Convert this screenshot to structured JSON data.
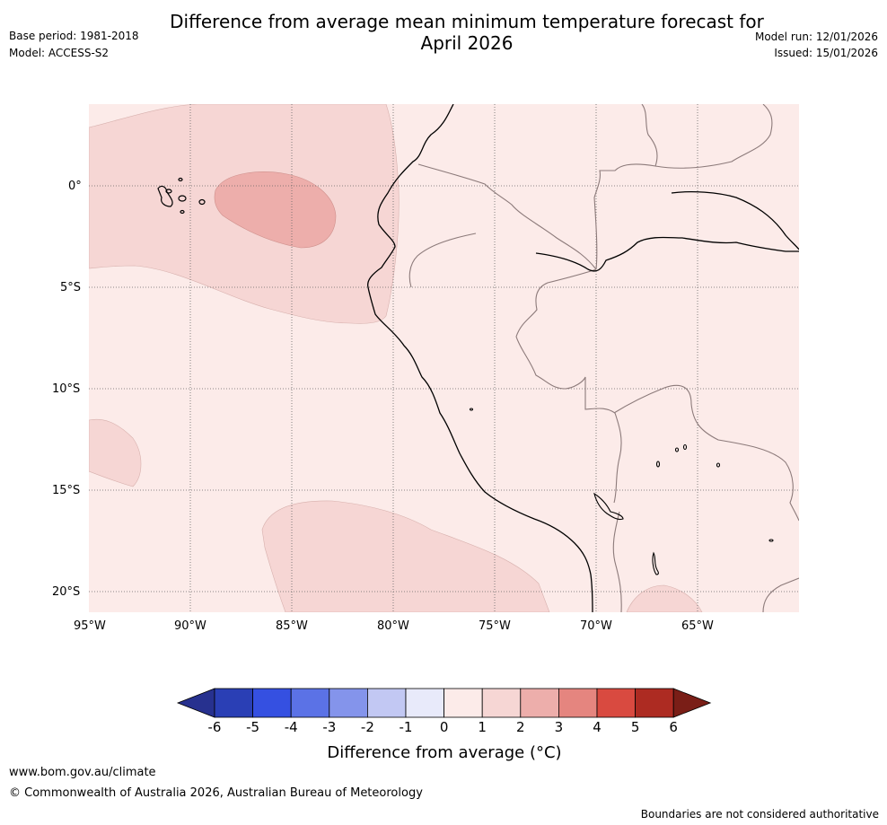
{
  "header": {
    "title_line1": "Difference from average mean minimum temperature forecast for",
    "title_line2": "April 2026",
    "base_period": "Base period: 1981-2018",
    "model": "Model: ACCESS-S2",
    "model_run": "Model run: 12/01/2026",
    "issued": "Issued: 15/01/2026"
  },
  "map": {
    "lat_labels": [
      "0°",
      "5°S",
      "10°S",
      "15°S",
      "20°S"
    ],
    "lon_labels": [
      "95°W",
      "90°W",
      "85°W",
      "80°W",
      "75°W",
      "70°W",
      "65°W"
    ],
    "region": "Western South America (Peru, Ecuador, Galápagos)",
    "colors": {
      "anomaly_0_1": "#fcebe9",
      "anomaly_1_2": "#f6d6d4",
      "anomaly_2_3": "#edaeab",
      "coast": "#000000",
      "borders": "#8c7a7a",
      "gridlines": "#666666"
    }
  },
  "colorbar": {
    "labels": [
      "-6",
      "-5",
      "-4",
      "-3",
      "-2",
      "-1",
      "0",
      "1",
      "2",
      "3",
      "4",
      "5",
      "6"
    ],
    "colors": [
      "#27318f",
      "#2a3fb5",
      "#3550e1",
      "#5b72e6",
      "#8494eb",
      "#c2c8f3",
      "#e8eafa",
      "#fcebe9",
      "#f6d6d4",
      "#edaeab",
      "#e5857f",
      "#d94a40",
      "#ad2b22",
      "#7a1e17"
    ],
    "title": "Difference from average (°C)"
  },
  "footer": {
    "url": "www.bom.gov.au/climate",
    "copyright": "© Commonwealth of Australia 2026, Australian Bureau of Meteorology",
    "disclaimer": "Boundaries are not considered authoritative"
  }
}
